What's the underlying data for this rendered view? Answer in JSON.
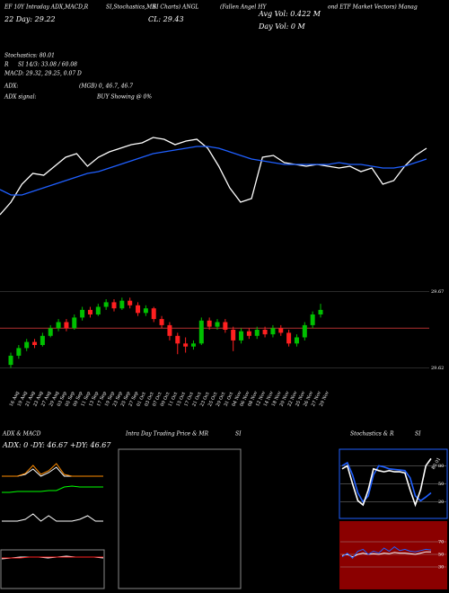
{
  "header": {
    "lines": [
      "EF 10Y Intraday ADX,MACD,R",
      "SI,Stochastics,MR",
      "SI Charts) ANGL",
      "(Fallen Angel HY",
      "ond ETF Market Vectors) Manag",
      "22 Day: 29.22",
      "CL: 29.43",
      "Avg Vol: 0.422  M",
      "Day Vol: 0   M",
      "Stochastics: 80.01",
      "R",
      "SI 14/3: 33.08 / 60.08",
      "MACD: 29.32, 29.25, 0.07 D",
      "ADX:",
      "(MGB) 0, 46.7, 46.7",
      "ADX  signal:",
      "BUY Showing @ 0%"
    ]
  },
  "chart_data": [
    {
      "type": "line",
      "ylim": [
        29.62,
        29.67
      ],
      "series": [
        {
          "color": "#ffffff",
          "values": [
            29.623,
            29.63,
            29.64,
            29.646,
            29.645,
            29.65,
            29.655,
            29.657,
            29.65,
            29.655,
            29.658,
            29.66,
            29.662,
            29.663,
            29.666,
            29.665,
            29.662,
            29.664,
            29.665,
            29.66,
            29.65,
            29.638,
            29.63,
            29.632,
            29.655,
            29.656,
            29.652,
            29.651,
            29.65,
            29.651,
            29.65,
            29.649,
            29.65,
            29.647,
            29.649,
            29.64,
            29.642,
            29.65,
            29.656,
            29.66
          ]
        },
        {
          "color": "#1f5fff",
          "values": [
            29.637,
            29.634,
            29.634,
            29.636,
            29.638,
            29.64,
            29.642,
            29.644,
            29.646,
            29.647,
            29.649,
            29.651,
            29.653,
            29.655,
            29.657,
            29.658,
            29.659,
            29.66,
            29.661,
            29.661,
            29.66,
            29.658,
            29.656,
            29.654,
            29.653,
            29.652,
            29.651,
            29.651,
            29.651,
            29.651,
            29.651,
            29.652,
            29.651,
            29.651,
            29.65,
            29.649,
            29.649,
            29.65,
            29.652,
            29.654
          ]
        }
      ]
    },
    {
      "type": "candlestick",
      "ylim": [
        29.615,
        29.675
      ],
      "yticks": [
        29.67,
        29.62
      ],
      "hline": 29.646,
      "up_color": "#00c000",
      "down_color": "#ff2020",
      "categories": [
        "16 Aug",
        "19 Aug",
        "21 Aug",
        "23 Aug",
        "27 Aug",
        "29 Aug",
        "03 Sep",
        "05 Sep",
        "09 Sep",
        "11 Sep",
        "13 Sep",
        "17 Sep",
        "19 Sep",
        "23 Sep",
        "25 Sep",
        "27 Sep",
        "01 Oct",
        "03 Oct",
        "07 Oct",
        "09 Oct",
        "11 Oct",
        "15 Oct",
        "17 Oct",
        "21 Oct",
        "23 Oct",
        "25 Oct",
        "29 Oct",
        "31 Oct",
        "04 Nov",
        "06 Nov",
        "08 Nov",
        "12 Nov",
        "14 Nov",
        "18 Nov",
        "20 Nov",
        "22 Nov",
        "25 Nov",
        "26 Nov",
        "27 Nov",
        "29 Nov"
      ],
      "open": [
        29.622,
        29.628,
        29.633,
        29.637,
        29.635,
        29.641,
        29.646,
        29.65,
        29.646,
        29.653,
        29.658,
        29.655,
        29.66,
        29.663,
        29.659,
        29.664,
        29.661,
        29.656,
        29.659,
        29.652,
        29.648,
        29.641,
        29.636,
        29.634,
        29.636,
        29.651,
        29.647,
        29.65,
        29.645,
        29.638,
        29.644,
        29.641,
        29.645,
        29.642,
        29.646,
        29.643,
        29.636,
        29.64,
        29.648,
        29.655
      ],
      "close": [
        29.628,
        29.633,
        29.637,
        29.635,
        29.641,
        29.646,
        29.65,
        29.646,
        29.653,
        29.658,
        29.655,
        29.66,
        29.663,
        29.659,
        29.664,
        29.661,
        29.656,
        29.659,
        29.652,
        29.648,
        29.641,
        29.636,
        29.634,
        29.636,
        29.651,
        29.647,
        29.65,
        29.645,
        29.638,
        29.644,
        29.641,
        29.645,
        29.642,
        29.646,
        29.643,
        29.636,
        29.64,
        29.648,
        29.655,
        29.658
      ],
      "high": [
        29.63,
        29.635,
        29.639,
        29.639,
        29.643,
        29.648,
        29.652,
        29.652,
        29.655,
        29.66,
        29.66,
        29.662,
        29.665,
        29.665,
        29.666,
        29.666,
        29.663,
        29.661,
        29.66,
        29.654,
        29.65,
        29.643,
        29.64,
        29.638,
        29.653,
        29.653,
        29.652,
        29.652,
        29.647,
        29.646,
        29.646,
        29.647,
        29.647,
        29.648,
        29.648,
        29.645,
        29.642,
        29.65,
        29.657,
        29.662
      ],
      "low": [
        29.62,
        29.626,
        29.631,
        29.633,
        29.634,
        29.64,
        29.644,
        29.644,
        29.645,
        29.651,
        29.653,
        29.654,
        29.658,
        29.657,
        29.658,
        29.659,
        29.654,
        29.654,
        29.65,
        29.646,
        29.638,
        29.629,
        29.63,
        29.632,
        29.635,
        29.645,
        29.645,
        29.643,
        29.631,
        29.636,
        29.639,
        29.639,
        29.64,
        29.64,
        29.641,
        29.634,
        29.634,
        29.638,
        29.646,
        29.653
      ]
    },
    {
      "type": "line",
      "title": "ADX  & MACD",
      "subtitle": "ADX: 0  -DY: 46.67  +DY: 46.67",
      "ylim": [
        0,
        100
      ],
      "series": [
        {
          "color": "#00ff00",
          "values": [
            52,
            52,
            53,
            53,
            53,
            53,
            54,
            54,
            58,
            59,
            58,
            58,
            58,
            58
          ]
        },
        {
          "color": "#ffffff",
          "values": [
            70,
            70,
            70,
            72,
            78,
            70,
            74,
            80,
            70,
            70,
            70,
            70,
            70,
            70
          ]
        },
        {
          "color": "#ff8c00",
          "values": [
            70,
            70,
            70,
            73,
            82,
            72,
            76,
            84,
            72,
            70,
            70,
            70,
            70,
            70
          ]
        },
        {
          "color": "#ffffff",
          "values": [
            20,
            20,
            20,
            22,
            28,
            20,
            26,
            20,
            20,
            20,
            22,
            26,
            20,
            20
          ]
        }
      ]
    },
    {
      "type": "line",
      "ylim": [
        -0.2,
        0.2
      ],
      "series": [
        {
          "color": "#ffffff",
          "values": [
            0.1,
            0.11,
            0.12,
            0.12,
            0.12,
            0.11,
            0.12,
            0.13,
            0.12,
            0.12,
            0.12,
            0.11
          ]
        },
        {
          "color": "#ff2020",
          "values": [
            0.11,
            0.11,
            0.11,
            0.12,
            0.12,
            0.12,
            0.12,
            0.12,
            0.12,
            0.12,
            0.12,
            0.12
          ]
        }
      ]
    },
    {
      "type": "blank",
      "title": "Intra Day Trading Price  & MR",
      "title2": "SI"
    },
    {
      "type": "line",
      "title": "Stochastics  & R",
      "title2": "SI",
      "ylim": [
        0,
        100
      ],
      "yticks": [
        80,
        50,
        20
      ],
      "value_label": "80.01",
      "series": [
        {
          "color": "#1f5fff",
          "values": [
            80,
            85,
            65,
            35,
            20,
            30,
            65,
            80,
            78,
            75,
            74,
            73,
            72,
            60,
            30,
            22,
            28,
            35
          ]
        },
        {
          "color": "#ffffff",
          "values": [
            75,
            80,
            50,
            22,
            15,
            40,
            75,
            72,
            70,
            72,
            70,
            70,
            68,
            40,
            15,
            40,
            80,
            92
          ]
        }
      ]
    },
    {
      "type": "line",
      "ylim": [
        0,
        100
      ],
      "yticks": [
        70,
        50,
        30
      ],
      "series": [
        {
          "color": "#ffffff",
          "values": [
            48,
            50,
            46,
            50,
            52,
            50,
            51,
            50,
            52,
            51,
            53,
            52,
            52,
            51,
            50,
            52,
            54,
            54
          ]
        },
        {
          "color": "#1f5fff",
          "values": [
            46,
            52,
            44,
            55,
            58,
            50,
            55,
            52,
            60,
            55,
            62,
            56,
            58,
            55,
            54,
            56,
            58,
            57
          ]
        }
      ]
    }
  ]
}
